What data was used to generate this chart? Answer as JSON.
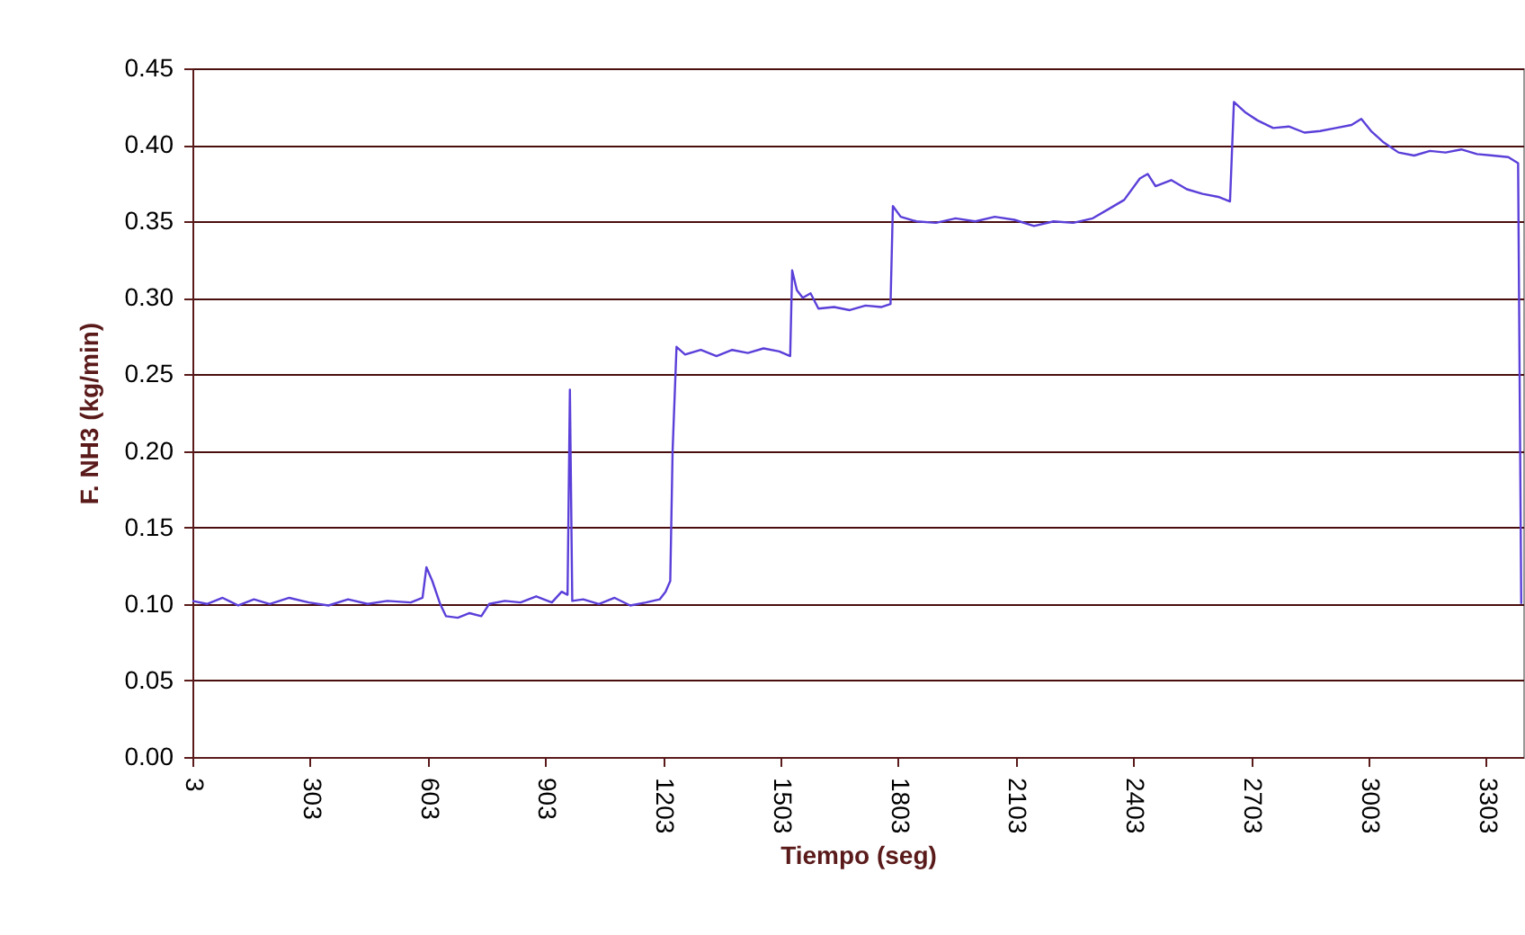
{
  "chart_data": {
    "type": "line",
    "xlabel": "Tiempo (seg)",
    "ylabel": "F. NH3 (kg/min)",
    "color": "#5b3fd9",
    "grid": "y",
    "xlim": [
      3,
      3398
    ],
    "xticks": [
      3,
      303,
      603,
      903,
      1203,
      1503,
      1803,
      2103,
      2403,
      2703,
      3003,
      3303
    ],
    "ylim": [
      0,
      0.45
    ],
    "yticks": [
      {
        "value": 0,
        "label": "0.00"
      },
      0.05,
      {
        "value": 0.1,
        "label": "0.10"
      },
      0.15,
      {
        "value": 0.2,
        "label": "0.20"
      },
      0.25,
      {
        "value": 0.3,
        "label": "0.30"
      },
      0.35,
      {
        "value": 0.4,
        "label": "0.40"
      },
      0.45
    ],
    "x": [
      3,
      40,
      80,
      120,
      160,
      200,
      250,
      300,
      350,
      400,
      450,
      500,
      560,
      590,
      600,
      615,
      635,
      650,
      680,
      710,
      740,
      760,
      800,
      840,
      880,
      920,
      945,
      960,
      966,
      972,
      1000,
      1040,
      1080,
      1120,
      1160,
      1195,
      1210,
      1222,
      1228,
      1238,
      1260,
      1300,
      1340,
      1380,
      1420,
      1460,
      1500,
      1528,
      1533,
      1545,
      1560,
      1580,
      1600,
      1640,
      1680,
      1720,
      1760,
      1784,
      1790,
      1810,
      1850,
      1900,
      1950,
      2000,
      2050,
      2100,
      2150,
      2200,
      2250,
      2300,
      2340,
      2380,
      2420,
      2440,
      2460,
      2500,
      2540,
      2580,
      2620,
      2650,
      2660,
      2690,
      2720,
      2760,
      2800,
      2840,
      2880,
      2920,
      2960,
      2985,
      3010,
      3040,
      3080,
      3120,
      3160,
      3200,
      3240,
      3280,
      3320,
      3360,
      3385,
      3393
    ],
    "values": [
      0.102,
      0.1,
      0.104,
      0.099,
      0.103,
      0.1,
      0.104,
      0.101,
      0.099,
      0.103,
      0.1,
      0.102,
      0.101,
      0.104,
      0.124,
      0.115,
      0.1,
      0.092,
      0.091,
      0.094,
      0.092,
      0.1,
      0.102,
      0.101,
      0.105,
      0.101,
      0.108,
      0.106,
      0.24,
      0.102,
      0.103,
      0.1,
      0.104,
      0.099,
      0.101,
      0.103,
      0.108,
      0.115,
      0.2,
      0.268,
      0.263,
      0.266,
      0.262,
      0.266,
      0.264,
      0.267,
      0.265,
      0.262,
      0.318,
      0.305,
      0.3,
      0.303,
      0.293,
      0.294,
      0.292,
      0.295,
      0.294,
      0.296,
      0.36,
      0.353,
      0.35,
      0.349,
      0.352,
      0.35,
      0.353,
      0.351,
      0.347,
      0.35,
      0.349,
      0.352,
      0.358,
      0.364,
      0.378,
      0.381,
      0.373,
      0.377,
      0.371,
      0.368,
      0.366,
      0.363,
      0.428,
      0.421,
      0.416,
      0.411,
      0.412,
      0.408,
      0.409,
      0.411,
      0.413,
      0.417,
      0.409,
      0.402,
      0.395,
      0.393,
      0.396,
      0.395,
      0.397,
      0.394,
      0.393,
      0.392,
      0.388,
      0.1
    ]
  }
}
